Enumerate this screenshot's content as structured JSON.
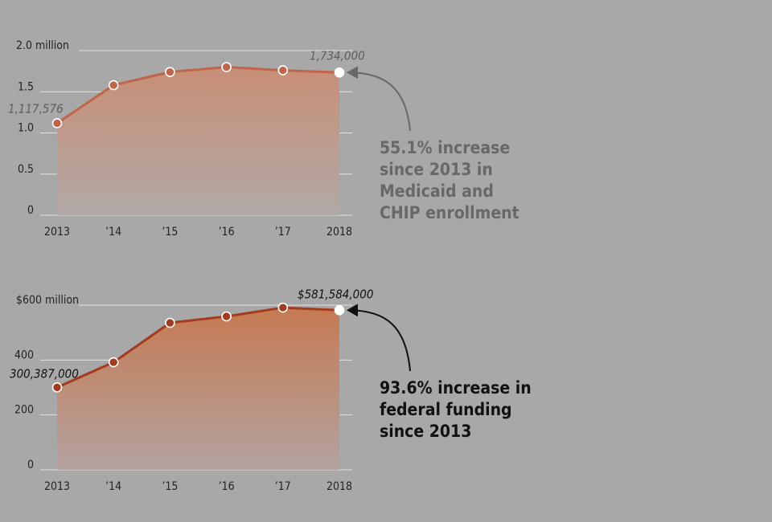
{
  "chart_data": [
    {
      "type": "area-line",
      "categories": [
        "2013",
        "’14",
        "’15",
        "’16",
        "’17",
        "2018"
      ],
      "values": [
        1.117576,
        1.58,
        1.74,
        1.8,
        1.76,
        1.734
      ],
      "value_labels": [
        "1,117,576",
        null,
        null,
        null,
        null,
        "1,734,000"
      ],
      "ylim": [
        0,
        2
      ],
      "yticks": [
        0,
        0.5,
        {
          "value": 1,
          "label": "1.0"
        },
        1.5,
        {
          "value": 2,
          "label": "2.0 million"
        }
      ],
      "grid": true,
      "color": "#c0654a",
      "area_colors": [
        "#c98e76",
        "#b1a9a6"
      ],
      "annotation_color": "#686868",
      "annotation": [
        "55.1% increase",
        "since 2013 in",
        "Medicaid and",
        "CHIP enrollment"
      ]
    },
    {
      "type": "area-line",
      "categories": [
        "2013",
        "’14",
        "’15",
        "’16",
        "’17",
        "2018"
      ],
      "values": [
        300.387,
        392,
        535.6,
        559,
        591,
        581.584
      ],
      "value_labels": [
        "300,387,000",
        null,
        null,
        null,
        null,
        "$581,584,000"
      ],
      "ylim": [
        0,
        600
      ],
      "yticks": [
        0,
        200,
        400,
        {
          "value": 600,
          "label": "$600 million"
        }
      ],
      "grid": true,
      "color": "#a43a1e",
      "area_colors": [
        "#c67a52",
        "#b3a2a0"
      ],
      "annotation_color": "#111111",
      "annotation": [
        "93.6% increase in",
        "federal funding",
        "since 2013"
      ]
    }
  ]
}
